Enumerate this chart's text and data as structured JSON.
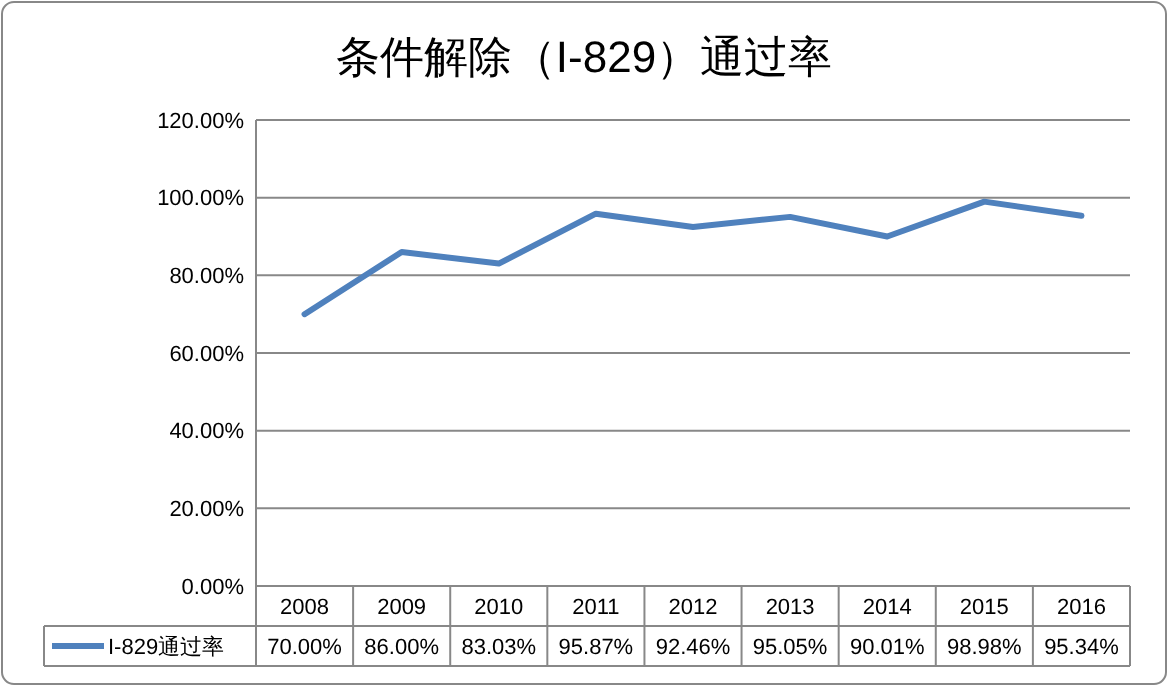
{
  "chart_data": {
    "type": "line",
    "title": "条件解除（I-829）通过率",
    "categories": [
      "2008",
      "2009",
      "2010",
      "2011",
      "2012",
      "2013",
      "2014",
      "2015",
      "2016"
    ],
    "series": [
      {
        "name": "I-829通过率",
        "color": "#4f81bd",
        "values": [
          70.0,
          86.0,
          83.03,
          95.87,
          92.46,
          95.05,
          90.01,
          98.98,
          95.34
        ],
        "value_labels": [
          "70.00%",
          "86.00%",
          "83.03%",
          "95.87%",
          "92.46%",
          "95.05%",
          "90.01%",
          "98.98%",
          "95.34%"
        ]
      }
    ],
    "ylim": [
      0,
      120
    ],
    "yticks": [
      {
        "value": 0,
        "label": "0.00%"
      },
      {
        "value": 20,
        "label": "20.00%"
      },
      {
        "value": 40,
        "label": "40.00%"
      },
      {
        "value": 60,
        "label": "60.00%"
      },
      {
        "value": 80,
        "label": "80.00%"
      },
      {
        "value": 100,
        "label": "100.00%"
      },
      {
        "value": 120,
        "label": "120.00%"
      }
    ],
    "grid": "y",
    "legend": "bottom",
    "marker": "none",
    "line_style": "solid"
  }
}
